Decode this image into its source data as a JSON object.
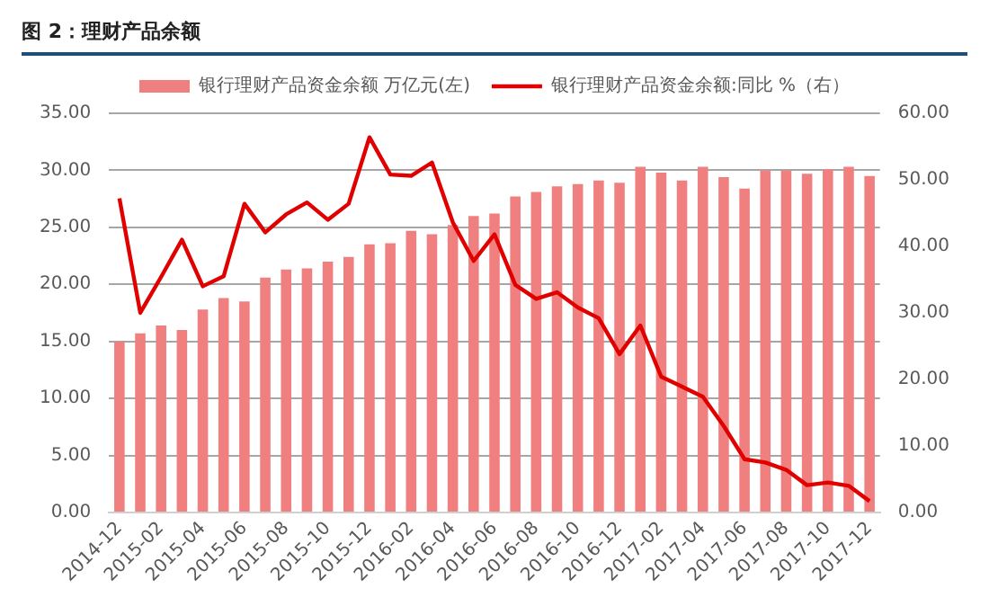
{
  "chart_data": {
    "type": "bar",
    "title": "图 2：理财产品余额",
    "categories": [
      "2014-12",
      null,
      "2015-02",
      null,
      "2015-04",
      null,
      "2015-06",
      null,
      "2015-08",
      null,
      "2015-10",
      null,
      "2015-12",
      null,
      "2016-02",
      null,
      "2016-04",
      null,
      "2016-06",
      null,
      "2016-08",
      null,
      "2016-10",
      null,
      "2016-12",
      null,
      "2017-02",
      null,
      "2017-04",
      null,
      "2017-06",
      null,
      "2017-08",
      null,
      "2017-10",
      null,
      "2017-12"
    ],
    "series": [
      {
        "name": "银行理财产品资金余额 万亿元(左)",
        "color": "#f08080",
        "values": [
          15.0,
          15.7,
          16.4,
          16.0,
          17.8,
          18.8,
          18.5,
          20.6,
          21.3,
          21.4,
          22.0,
          22.4,
          23.5,
          23.6,
          24.7,
          24.4,
          25.2,
          26.0,
          26.2,
          27.7,
          28.1,
          28.6,
          28.8,
          29.1,
          28.9,
          30.3,
          29.8,
          29.1,
          30.3,
          29.4,
          28.4,
          30.0,
          30.0,
          29.7,
          30.1,
          30.3,
          29.5
        ]
      },
      {
        "name": "银行理财产品资金余额:同比 %（右）",
        "type": "line",
        "axis": "y2",
        "color": "#e00000",
        "values": [
          47.2,
          30.0,
          35.4,
          41.0,
          34.0,
          35.5,
          46.4,
          42.1,
          44.8,
          46.6,
          44.0,
          46.4,
          56.4,
          50.8,
          50.6,
          52.6,
          43.6,
          37.8,
          41.8,
          34.2,
          32.1,
          33.1,
          30.8,
          29.2,
          23.8,
          28.1,
          20.4,
          18.9,
          17.4,
          13.0,
          8.0,
          7.5,
          6.4,
          4.1,
          4.5,
          4.0,
          1.7
        ]
      }
    ],
    "ylim": [
      0,
      35
    ],
    "yticks": [
      {
        "value": 0,
        "label": "0.00"
      },
      {
        "value": 5,
        "label": "5.00"
      },
      {
        "value": 10,
        "label": "10.00"
      },
      {
        "value": 15,
        "label": "15.00"
      },
      {
        "value": 20,
        "label": "20.00"
      },
      {
        "value": 25,
        "label": "25.00"
      },
      {
        "value": 30,
        "label": "30.00"
      },
      {
        "value": 35,
        "label": "35.00"
      }
    ],
    "y2lim": [
      0,
      60
    ],
    "y2ticks": [
      {
        "value": 0,
        "label": "0.00"
      },
      {
        "value": 10,
        "label": "10.00"
      },
      {
        "value": 20,
        "label": "20.00"
      },
      {
        "value": 30,
        "label": "30.00"
      },
      {
        "value": 40,
        "label": "40.00"
      },
      {
        "value": 50,
        "label": "50.00"
      },
      {
        "value": 60,
        "label": "60.00"
      }
    ],
    "grid": "y",
    "legend": "top",
    "marker": "none"
  }
}
